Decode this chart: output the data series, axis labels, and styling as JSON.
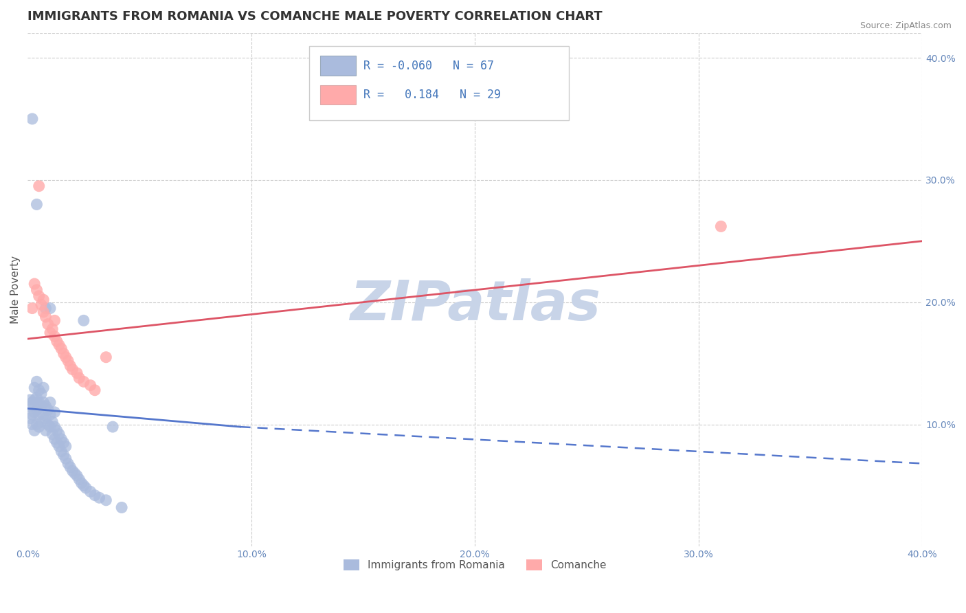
{
  "title": "IMMIGRANTS FROM ROMANIA VS COMANCHE MALE POVERTY CORRELATION CHART",
  "source_text": "Source: ZipAtlas.com",
  "ylabel": "Male Poverty",
  "xlim": [
    0.0,
    0.4
  ],
  "ylim": [
    0.0,
    0.42
  ],
  "xtick_labels": [
    "0.0%",
    "10.0%",
    "20.0%",
    "30.0%",
    "40.0%"
  ],
  "xtick_vals": [
    0.0,
    0.1,
    0.2,
    0.3,
    0.4
  ],
  "ytick_labels": [
    "10.0%",
    "20.0%",
    "30.0%",
    "40.0%"
  ],
  "ytick_vals": [
    0.1,
    0.2,
    0.3,
    0.4
  ],
  "background_color": "#ffffff",
  "grid_color": "#cccccc",
  "watermark": "ZIPatlas",
  "legend_R1": "-0.060",
  "legend_N1": "67",
  "legend_R2": "0.184",
  "legend_N2": "29",
  "blue_color": "#aabbdd",
  "pink_color": "#ffaaaa",
  "blue_line_color": "#5577cc",
  "pink_line_color": "#dd5566",
  "blue_scatter": [
    [
      0.001,
      0.105
    ],
    [
      0.001,
      0.115
    ],
    [
      0.001,
      0.12
    ],
    [
      0.002,
      0.1
    ],
    [
      0.002,
      0.108
    ],
    [
      0.002,
      0.118
    ],
    [
      0.003,
      0.095
    ],
    [
      0.003,
      0.11
    ],
    [
      0.003,
      0.12
    ],
    [
      0.003,
      0.13
    ],
    [
      0.004,
      0.1
    ],
    [
      0.004,
      0.112
    ],
    [
      0.004,
      0.122
    ],
    [
      0.004,
      0.135
    ],
    [
      0.005,
      0.098
    ],
    [
      0.005,
      0.108
    ],
    [
      0.005,
      0.118
    ],
    [
      0.005,
      0.128
    ],
    [
      0.006,
      0.102
    ],
    [
      0.006,
      0.115
    ],
    [
      0.006,
      0.125
    ],
    [
      0.007,
      0.108
    ],
    [
      0.007,
      0.118
    ],
    [
      0.007,
      0.13
    ],
    [
      0.008,
      0.095
    ],
    [
      0.008,
      0.105
    ],
    [
      0.008,
      0.115
    ],
    [
      0.009,
      0.1
    ],
    [
      0.009,
      0.112
    ],
    [
      0.01,
      0.098
    ],
    [
      0.01,
      0.108
    ],
    [
      0.01,
      0.118
    ],
    [
      0.011,
      0.092
    ],
    [
      0.011,
      0.102
    ],
    [
      0.012,
      0.088
    ],
    [
      0.012,
      0.098
    ],
    [
      0.012,
      0.11
    ],
    [
      0.013,
      0.085
    ],
    [
      0.013,
      0.095
    ],
    [
      0.014,
      0.082
    ],
    [
      0.014,
      0.092
    ],
    [
      0.015,
      0.078
    ],
    [
      0.015,
      0.088
    ],
    [
      0.016,
      0.075
    ],
    [
      0.016,
      0.085
    ],
    [
      0.017,
      0.072
    ],
    [
      0.017,
      0.082
    ],
    [
      0.018,
      0.068
    ],
    [
      0.019,
      0.065
    ],
    [
      0.02,
      0.062
    ],
    [
      0.021,
      0.06
    ],
    [
      0.022,
      0.058
    ],
    [
      0.023,
      0.055
    ],
    [
      0.024,
      0.052
    ],
    [
      0.025,
      0.05
    ],
    [
      0.026,
      0.048
    ],
    [
      0.028,
      0.045
    ],
    [
      0.03,
      0.042
    ],
    [
      0.032,
      0.04
    ],
    [
      0.035,
      0.038
    ],
    [
      0.002,
      0.35
    ],
    [
      0.004,
      0.28
    ],
    [
      0.008,
      0.195
    ],
    [
      0.01,
      0.195
    ],
    [
      0.025,
      0.185
    ],
    [
      0.038,
      0.098
    ],
    [
      0.042,
      0.032
    ]
  ],
  "pink_scatter": [
    [
      0.002,
      0.195
    ],
    [
      0.003,
      0.215
    ],
    [
      0.004,
      0.21
    ],
    [
      0.005,
      0.205
    ],
    [
      0.006,
      0.198
    ],
    [
      0.007,
      0.192
    ],
    [
      0.007,
      0.202
    ],
    [
      0.008,
      0.188
    ],
    [
      0.009,
      0.182
    ],
    [
      0.01,
      0.175
    ],
    [
      0.011,
      0.178
    ],
    [
      0.012,
      0.172
    ],
    [
      0.012,
      0.185
    ],
    [
      0.013,
      0.168
    ],
    [
      0.014,
      0.165
    ],
    [
      0.015,
      0.162
    ],
    [
      0.016,
      0.158
    ],
    [
      0.017,
      0.155
    ],
    [
      0.018,
      0.152
    ],
    [
      0.019,
      0.148
    ],
    [
      0.02,
      0.145
    ],
    [
      0.022,
      0.142
    ],
    [
      0.023,
      0.138
    ],
    [
      0.025,
      0.135
    ],
    [
      0.028,
      0.132
    ],
    [
      0.03,
      0.128
    ],
    [
      0.005,
      0.295
    ],
    [
      0.035,
      0.155
    ],
    [
      0.31,
      0.262
    ]
  ],
  "title_color": "#333333",
  "title_fontsize": 13,
  "axis_label_color": "#555555",
  "tick_color": "#6688bb",
  "source_color": "#888888",
  "watermark_color": "#c8d4e8",
  "legend_text_color": "#4477bb",
  "blue_trend_x0": 0.0,
  "blue_trend_y0": 0.113,
  "blue_trend_x_solid_end": 0.095,
  "blue_trend_y_solid_end": 0.098,
  "blue_trend_x1": 0.4,
  "blue_trend_y1": 0.068,
  "pink_trend_x0": 0.0,
  "pink_trend_y0": 0.17,
  "pink_trend_x1": 0.4,
  "pink_trend_y1": 0.25
}
